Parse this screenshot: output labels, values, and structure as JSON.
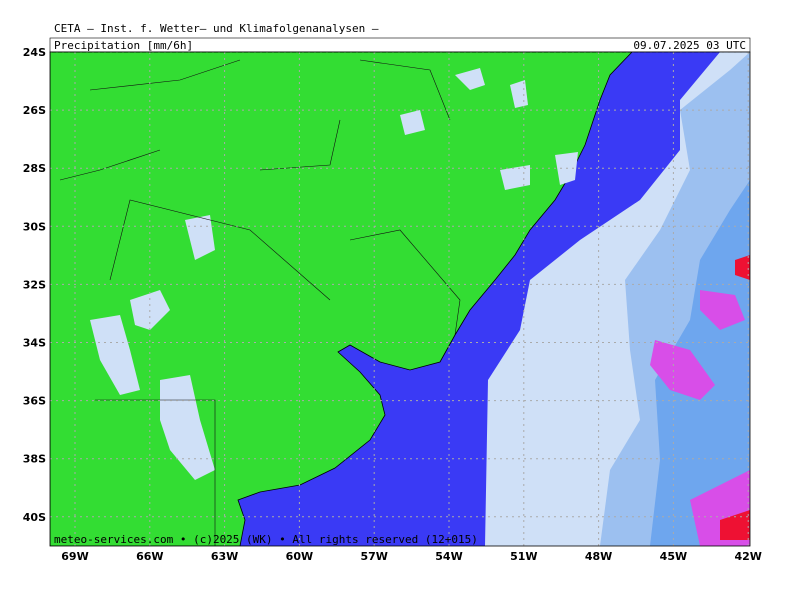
{
  "header": {
    "title": "CETA — Inst. f. Wetter— und Klimafolgenanalysen —",
    "variable": "Precipitation [mm/6h]",
    "valid_time": "09.07.2025 03 UTC"
  },
  "map": {
    "latitude_labels": [
      "24S",
      "26S",
      "28S",
      "30S",
      "32S",
      "34S",
      "36S",
      "38S",
      "40S"
    ],
    "longitude_labels": [
      "69W",
      "66W",
      "63W",
      "60W",
      "57W",
      "54W",
      "51W",
      "48W",
      "45W",
      "42W"
    ],
    "credit": "meteo-services.com • (c)2025 (WK) • All rights reserved (12+015)"
  }
}
